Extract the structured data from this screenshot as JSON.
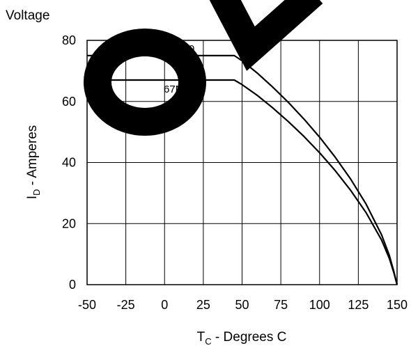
{
  "top_text": "Voltage",
  "chart_data": {
    "type": "line",
    "xlabel": {
      "main": "T",
      "sub": "C",
      "rest": " - Degrees C"
    },
    "ylabel": {
      "main": "I",
      "sub": "D",
      "rest": " - Amperes"
    },
    "xlim": [
      -50,
      150
    ],
    "ylim": [
      0,
      80
    ],
    "x_ticks": [
      "-50",
      "-25",
      "0",
      "25",
      "50",
      "75",
      "100",
      "125",
      "150"
    ],
    "y_ticks": [
      "0",
      "20",
      "40",
      "60",
      "80"
    ],
    "grid": true,
    "series": [
      {
        "name": "75N10",
        "x": [
          -50,
          0,
          40,
          45,
          50,
          60,
          70,
          80,
          90,
          100,
          110,
          120,
          130,
          140,
          145,
          148,
          150
        ],
        "y": [
          75,
          75,
          75,
          75,
          73.3,
          69.2,
          64.6,
          59.6,
          54.2,
          48.3,
          41.8,
          34.6,
          26.4,
          16.3,
          9.6,
          4.2,
          0
        ]
      },
      {
        "name": "67N10",
        "x": [
          -50,
          0,
          40,
          45,
          50,
          60,
          70,
          80,
          90,
          100,
          110,
          120,
          130,
          140,
          145,
          148,
          150
        ],
        "y": [
          67,
          67,
          67,
          67,
          65.5,
          61.9,
          57.8,
          53.3,
          48.5,
          43.2,
          37.4,
          30.9,
          23.6,
          14.6,
          8.6,
          3.8,
          0
        ]
      }
    ]
  }
}
